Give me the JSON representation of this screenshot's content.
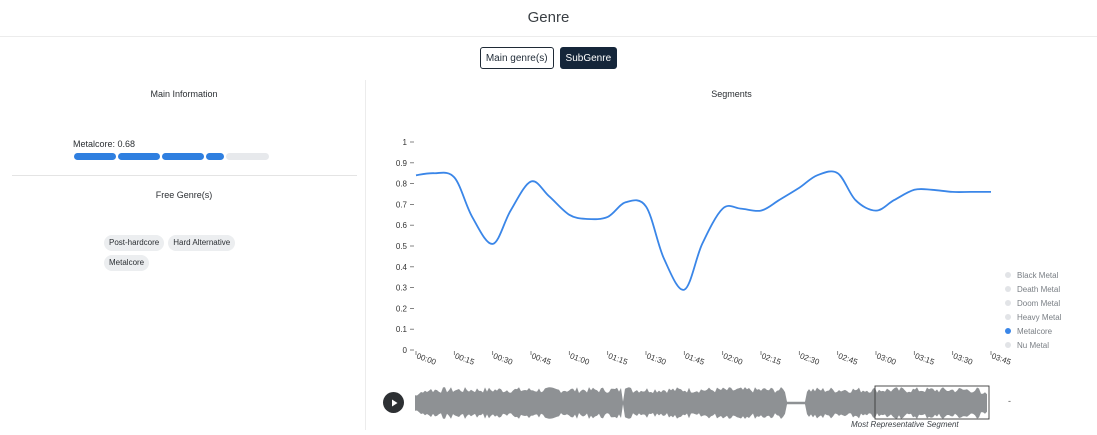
{
  "header": {
    "title": "Genre"
  },
  "toggle": {
    "main_label": "Main genre(s)",
    "sub_label": "SubGenre"
  },
  "main_info": {
    "title": "Main Information",
    "score_label": "Metalcore: 0.68",
    "score": 0.68,
    "accent": "#2f7fe0"
  },
  "free_genres": {
    "title": "Free Genre(s)",
    "tags": [
      "Post-hardcore",
      "Hard Alternative",
      "Metalcore"
    ]
  },
  "segments": {
    "title": "Segments",
    "representative_label": "Most Representative Segment",
    "end_marker": "-"
  },
  "legend": {
    "items": [
      {
        "label": "Black Metal",
        "active": false
      },
      {
        "label": "Death Metal",
        "active": false
      },
      {
        "label": "Doom Metal",
        "active": false
      },
      {
        "label": "Heavy Metal",
        "active": false
      },
      {
        "label": "Metalcore",
        "active": true
      },
      {
        "label": "Nu Metal",
        "active": false
      }
    ]
  },
  "chart_data": {
    "type": "line",
    "title": "",
    "xlabel": "",
    "ylabel": "",
    "ylim": [
      0,
      1
    ],
    "yticks": [
      "0",
      "0.1",
      "0.2",
      "0.3",
      "0.4",
      "0.5",
      "0.6",
      "0.7",
      "0.8",
      "0.9",
      "1"
    ],
    "xticks": [
      "00:00",
      "00:15",
      "00:30",
      "00:45",
      "01:00",
      "01:15",
      "01:30",
      "01:45",
      "02:00",
      "02:15",
      "02:30",
      "02:45",
      "03:00",
      "03:15",
      "03:30",
      "03:45"
    ],
    "color": "#3a86e8",
    "series": [
      {
        "name": "Metalcore",
        "x": [
          "00:00",
          "00:07",
          "00:15",
          "00:22",
          "00:30",
          "00:37",
          "00:45",
          "00:52",
          "01:00",
          "01:07",
          "01:15",
          "01:22",
          "01:30",
          "01:37",
          "01:45",
          "01:52",
          "02:00",
          "02:07",
          "02:15",
          "02:22",
          "02:30",
          "02:37",
          "02:45",
          "02:52",
          "03:00",
          "03:07",
          "03:15",
          "03:22",
          "03:30",
          "03:37",
          "03:45"
        ],
        "values": [
          0.84,
          0.85,
          0.83,
          0.64,
          0.51,
          0.67,
          0.81,
          0.74,
          0.65,
          0.63,
          0.64,
          0.71,
          0.69,
          0.44,
          0.29,
          0.51,
          0.68,
          0.68,
          0.67,
          0.72,
          0.78,
          0.84,
          0.85,
          0.72,
          0.67,
          0.72,
          0.77,
          0.77,
          0.76,
          0.76,
          0.76
        ]
      }
    ],
    "legend": "right"
  }
}
